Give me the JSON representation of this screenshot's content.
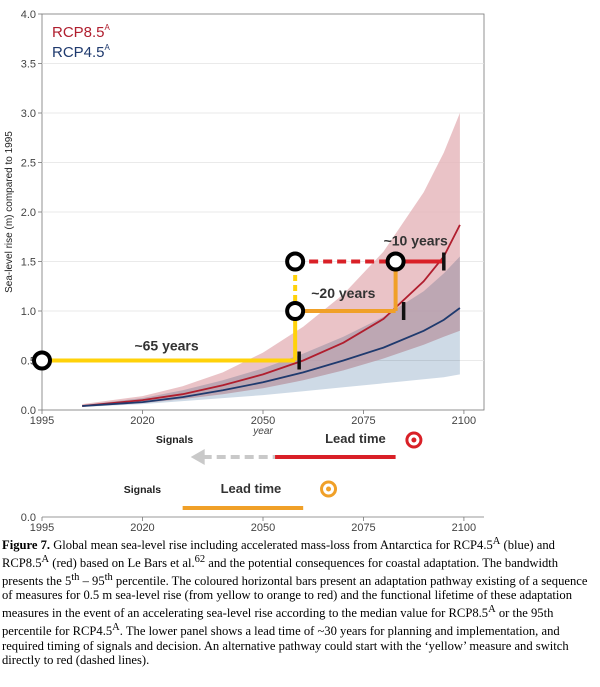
{
  "colors": {
    "rcp85": "#b01e2e",
    "rcp45": "#1f3a6e",
    "band85": "#e5b4b9",
    "band45": "#c5d3e2",
    "overlap": "#8a7c97",
    "yellow": "#ffd20a",
    "orange": "#f0a028",
    "red": "#d92027",
    "grey": "#c9c9c9"
  },
  "chart_data": [
    {
      "type": "area",
      "title": "",
      "xlabel": "year",
      "ylabel": "Sea-level rise (m) compared to 1995",
      "xlim": [
        1995,
        2105
      ],
      "ylim": [
        0,
        4.0
      ],
      "x_ticks": [
        1995,
        2020,
        2050,
        2075,
        2100
      ],
      "y_ticks": [
        0.0,
        0.5,
        1.0,
        1.5,
        2.0,
        2.5,
        3.0,
        3.5,
        4.0
      ],
      "y_tick_labels": [
        "0.0",
        "0.5",
        "1.0",
        "1.5",
        "2.0",
        "2.5",
        "3.0",
        "3.5",
        "4.0"
      ],
      "legend": [
        {
          "label": "RCP8.5",
          "sup": "A",
          "series": "rcp85"
        },
        {
          "label": "RCP4.5",
          "sup": "A",
          "series": "rcp45"
        }
      ],
      "series": [
        {
          "name": "RCP8.5 median",
          "x": [
            2005,
            2020,
            2030,
            2040,
            2050,
            2060,
            2070,
            2080,
            2090,
            2095,
            2099
          ],
          "values": [
            0.04,
            0.1,
            0.16,
            0.25,
            0.36,
            0.5,
            0.68,
            0.92,
            1.3,
            1.55,
            1.87
          ]
        },
        {
          "name": "RCP4.5 median",
          "x": [
            2005,
            2020,
            2030,
            2040,
            2050,
            2060,
            2070,
            2080,
            2090,
            2095,
            2099
          ],
          "values": [
            0.04,
            0.08,
            0.13,
            0.2,
            0.28,
            0.38,
            0.5,
            0.63,
            0.8,
            0.91,
            1.03
          ]
        },
        {
          "name": "RCP8.5 band",
          "x": [
            2005,
            2020,
            2030,
            2040,
            2050,
            2060,
            2070,
            2080,
            2090,
            2095,
            2099
          ],
          "low": [
            0.03,
            0.07,
            0.11,
            0.16,
            0.22,
            0.3,
            0.4,
            0.52,
            0.66,
            0.74,
            0.8
          ],
          "high": [
            0.06,
            0.14,
            0.24,
            0.38,
            0.58,
            0.84,
            1.17,
            1.6,
            2.2,
            2.6,
            3.0
          ]
        },
        {
          "name": "RCP4.5 band",
          "x": [
            2005,
            2020,
            2030,
            2040,
            2050,
            2060,
            2070,
            2080,
            2090,
            2095,
            2099
          ],
          "low": [
            0.03,
            0.06,
            0.09,
            0.12,
            0.15,
            0.19,
            0.23,
            0.27,
            0.31,
            0.33,
            0.36
          ],
          "high": [
            0.05,
            0.12,
            0.2,
            0.3,
            0.42,
            0.57,
            0.74,
            0.94,
            1.2,
            1.38,
            1.55
          ]
        }
      ],
      "pathway": {
        "yellow_horizontal": {
          "x": [
            1995,
            2058
          ],
          "y": 0.5
        },
        "yellow_to_orange_vertical": {
          "x": 2058,
          "y": [
            0.5,
            1.0
          ]
        },
        "orange_horizontal": {
          "x": [
            2058,
            2083
          ],
          "y": 1.0
        },
        "orange_to_red_vertical": {
          "x": 2083,
          "y": [
            1.0,
            1.5
          ]
        },
        "red_horizontal": {
          "x": [
            2083,
            2095
          ],
          "y": 1.5
        },
        "yellow_dashed_vertical": {
          "x": 2058,
          "y": [
            1.0,
            1.5
          ]
        },
        "red_dashed_horizontal": {
          "x": [
            2058,
            2083
          ],
          "y": 1.5
        },
        "circles": [
          {
            "x": 1995,
            "y": 0.5
          },
          {
            "x": 2058,
            "y": 1.0
          },
          {
            "x": 2058,
            "y": 1.5
          },
          {
            "x": 2083,
            "y": 1.5
          }
        ],
        "tick_marks": [
          {
            "x": 2059,
            "y": 0.5
          },
          {
            "x": 2085,
            "y": 1.0
          },
          {
            "x": 2095,
            "y": 1.5
          }
        ],
        "labels": [
          {
            "text": "~65 years",
            "x": 2026,
            "y": 0.6
          },
          {
            "text": "~20 years",
            "x": 2070,
            "y": 1.13
          },
          {
            "text": "~10 years",
            "x": 2088,
            "y": 1.66
          }
        ]
      }
    },
    {
      "type": "timeline",
      "title": "",
      "xlabel": "",
      "xlim": [
        1995,
        2105
      ],
      "x_ticks": [
        1995,
        2020,
        2050,
        2075,
        2100
      ],
      "y_tick_labels": [
        "0.0"
      ],
      "rows": [
        {
          "name": "red",
          "signals_label": "Signals",
          "lead_label": "Lead time",
          "grey_arrow_x": [
            2033,
            2053
          ],
          "bar_x": [
            2053,
            2083
          ],
          "circle_x": 2100
        },
        {
          "name": "orange",
          "signals_label": "Signals",
          "lead_label": "Lead time",
          "bar_x": [
            2030,
            2060
          ],
          "circle_x": 2079
        }
      ]
    }
  ],
  "caption": {
    "label": "Figure 7.",
    "parts": [
      " Global mean sea-level rise including accelerated mass-loss from Antarctica for RCP4.5",
      "A",
      " (blue) and RCP8.5",
      "A",
      " (red) based on Le Bars et al.",
      "62",
      " and the potential consequences for coastal adaptation. The bandwidth presents the 5",
      "th",
      " – 95",
      "th",
      " percentile. The coloured horizontal bars present an adaptation pathway existing of a sequence of measures for 0.5 m sea-level rise (from yellow to orange to red) and the functional lifetime of these adaptation measures in the event of an accelerating sea-level rise according to the median value for RCP8.5",
      "A",
      " or the 95th percentile for RCP4.5",
      "A",
      ". The lower panel shows a lead time of ~30 years for planning and implementation, and required timing of signals and decision. An alternative pathway could start with the ‘yellow’ measure and switch directly to red (dashed lines)."
    ]
  }
}
